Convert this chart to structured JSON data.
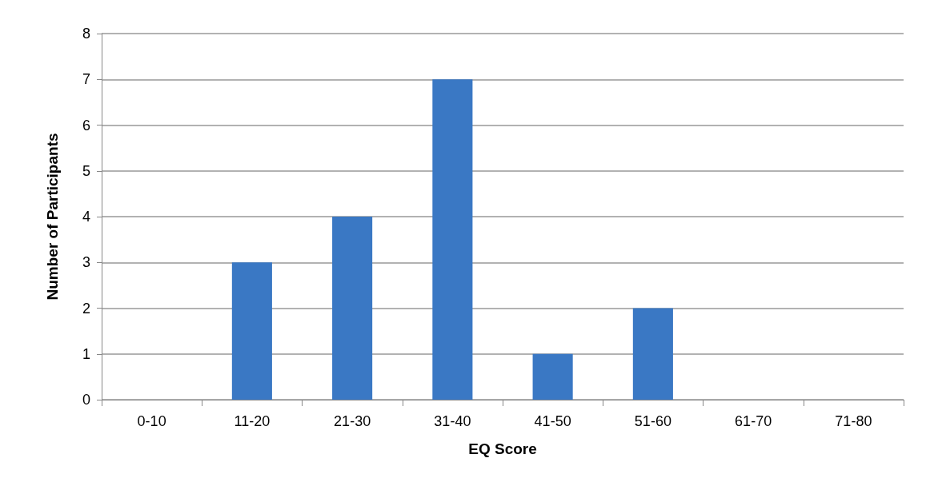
{
  "chart_data": {
    "type": "bar",
    "xlabel": "EQ Score",
    "ylabel": "Number of Participants",
    "categories": [
      "0-10",
      "11-20",
      "21-30",
      "31-40",
      "41-50",
      "51-60",
      "61-70",
      "71-80"
    ],
    "values": [
      0,
      3,
      4,
      7,
      1,
      2,
      0,
      0
    ],
    "color": "#3a78c4",
    "ylim": [
      0,
      8
    ],
    "yticks": [
      0,
      1,
      2,
      3,
      4,
      5,
      6,
      7,
      8
    ],
    "grid": "y"
  }
}
